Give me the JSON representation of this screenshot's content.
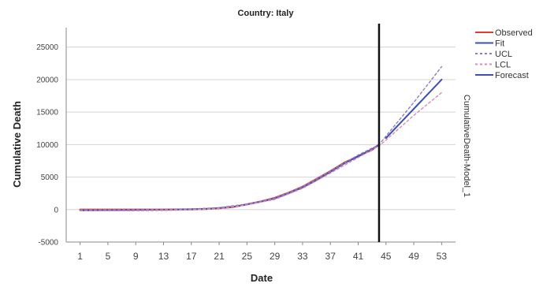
{
  "chart_data": {
    "type": "line",
    "title": "Country: Italy",
    "xlabel": "Date",
    "ylabel": "Cumulative Death",
    "right_label": "CumulativeDeath-Model_1",
    "x_ticks": [
      "1",
      "5",
      "9",
      "13",
      "17",
      "21",
      "25",
      "29",
      "33",
      "37",
      "41",
      "45",
      "49",
      "53"
    ],
    "xlim": [
      -1,
      55
    ],
    "ylim": [
      -5000,
      28000
    ],
    "y_ticks": [
      -5000,
      0,
      5000,
      10000,
      15000,
      20000,
      25000
    ],
    "forecast_start": 44,
    "grid": true,
    "legend_position": "top-right",
    "series": [
      {
        "name": "Observed",
        "color": "#e03c31",
        "dash": "solid",
        "x": [
          1,
          3,
          5,
          7,
          9,
          11,
          13,
          15,
          17,
          19,
          21,
          23,
          25,
          27,
          29,
          31,
          33,
          35,
          37,
          39,
          41,
          43,
          44
        ],
        "y": [
          0,
          0,
          0,
          0,
          0,
          0,
          0,
          5,
          30,
          80,
          200,
          400,
          800,
          1250,
          1800,
          2600,
          3500,
          4700,
          5900,
          7200,
          8200,
          9200,
          10000
        ]
      },
      {
        "name": "Fit",
        "color": "#3b4fb6",
        "dash": "solid",
        "x": [
          1,
          3,
          5,
          7,
          9,
          11,
          13,
          15,
          17,
          19,
          21,
          23,
          25,
          27,
          29,
          31,
          33,
          35,
          37,
          39,
          41,
          43,
          44
        ],
        "y": [
          -150,
          -120,
          -100,
          -90,
          -60,
          -40,
          -20,
          0,
          40,
          100,
          230,
          440,
          800,
          1200,
          1700,
          2500,
          3400,
          4500,
          5800,
          7100,
          8200,
          9300,
          10000
        ]
      },
      {
        "name": "UCL",
        "color": "#8e7cc3",
        "dash": "dotted",
        "x": [
          1,
          5,
          9,
          13,
          17,
          21,
          25,
          29,
          33,
          37,
          41,
          44,
          45,
          49,
          53
        ],
        "y": [
          0,
          0,
          0,
          0,
          80,
          300,
          850,
          1750,
          3500,
          5900,
          8400,
          10000,
          11300,
          16500,
          22000
        ]
      },
      {
        "name": "LCL",
        "color": "#d48fb0",
        "dash": "dotted",
        "x": [
          1,
          5,
          9,
          13,
          17,
          21,
          25,
          29,
          33,
          37,
          41,
          44,
          45,
          49,
          53
        ],
        "y": [
          -200,
          -200,
          -200,
          -150,
          -50,
          150,
          700,
          1550,
          3250,
          5600,
          8000,
          9800,
          10700,
          14500,
          18000
        ]
      },
      {
        "name": "Forecast",
        "color": "#3b4fb6",
        "dash": "solid",
        "x": [
          45,
          49,
          53
        ],
        "y": [
          11000,
          15500,
          20000
        ]
      }
    ]
  }
}
